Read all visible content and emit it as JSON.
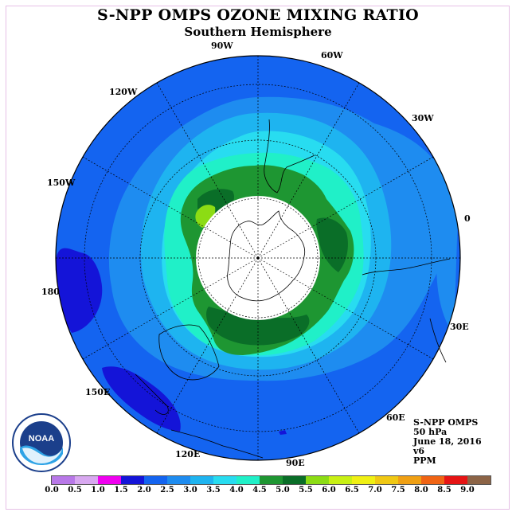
{
  "title": "S-NPP OMPS OZONE MIXING RATIO",
  "subtitle": "Southern Hemisphere",
  "longitude_labels": [
    "0",
    "30E",
    "60E",
    "90E",
    "120E",
    "150E",
    "180",
    "150W",
    "120W",
    "90W",
    "60W",
    "30W"
  ],
  "info": {
    "instrument": "S-NPP OMPS",
    "pressure": "50 hPa",
    "date": "June 18, 2016",
    "version": "v6",
    "units": "PPM"
  },
  "logo": {
    "text": "NOAA",
    "icon": "noaa-logo"
  },
  "colorbar": {
    "ticks": [
      "0.0",
      "0.5",
      "1.0",
      "1.5",
      "2.0",
      "2.5",
      "3.0",
      "3.5",
      "4.0",
      "4.5",
      "5.0",
      "5.5",
      "6.0",
      "6.5",
      "7.0",
      "7.5",
      "8.0",
      "8.5",
      "9.0"
    ],
    "colors": [
      "#b878e8",
      "#d8a8f0",
      "#f000f0",
      "#1414d8",
      "#1464f0",
      "#1e8cf0",
      "#1eb4f0",
      "#28dcf0",
      "#20f0c8",
      "#1e9632",
      "#0a6e28",
      "#8cdc14",
      "#c8f014",
      "#f0f014",
      "#f0c814",
      "#f0a014",
      "#f06414",
      "#e61414",
      "#8c6446"
    ]
  },
  "chart_data": {
    "type": "heatmap",
    "title": "S-NPP OMPS OZONE MIXING RATIO",
    "subtitle": "Southern Hemisphere",
    "projection": "polar stereographic, South Pole",
    "units": "PPM",
    "pressure_level": "50 hPa",
    "date": "June 18, 2016",
    "levels": [
      0.0,
      0.5,
      1.0,
      1.5,
      2.0,
      2.5,
      3.0,
      3.5,
      4.0,
      4.5,
      5.0,
      5.5,
      6.0,
      6.5,
      7.0,
      7.5,
      8.0,
      8.5,
      9.0
    ],
    "polar_night_region": "no data (white)",
    "visible_value_bands": [
      "1.5-2.0",
      "2.0-2.5",
      "2.5-3.0",
      "3.0-3.5",
      "3.5-4.0",
      "4.0-4.5",
      "4.5-5.0",
      "5.0-5.5"
    ]
  },
  "colors": {
    "frame": "#e6c0e6",
    "ocean_base": "#1464f0"
  }
}
